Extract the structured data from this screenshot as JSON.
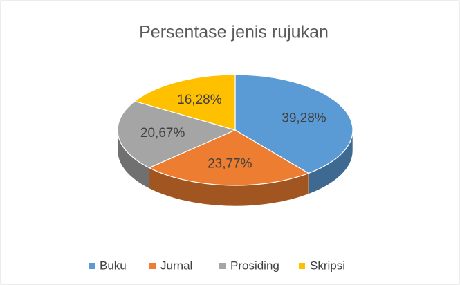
{
  "chart_data": {
    "type": "pie",
    "title": "Persentase jenis rujukan",
    "categories": [
      "Buku",
      "Jurnal",
      "Prosiding",
      "Skripsi"
    ],
    "values": [
      39.28,
      23.77,
      20.67,
      16.28
    ],
    "value_labels": [
      "39,28%",
      "23,77%",
      "20,67%",
      "16,28%"
    ],
    "colors": [
      "#5b9bd5",
      "#ed7d31",
      "#a5a5a5",
      "#ffc000"
    ],
    "legend": "bottom"
  }
}
